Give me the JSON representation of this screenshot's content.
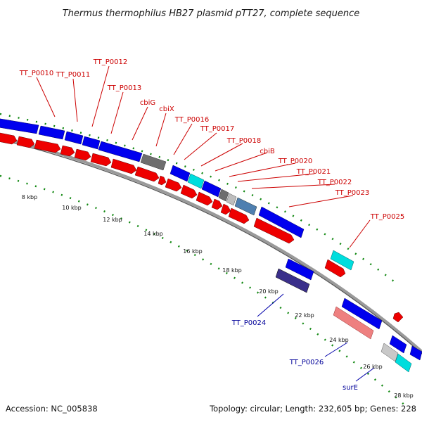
{
  "title": "Thermus thermophilus HB27 plasmid pTT27, complete sequence",
  "footer": {
    "accession": "Accession: NC_005838",
    "summary": "Topology: circular; Length: 232,605 bp; Genes: 228"
  },
  "colors": {
    "forward_cds": "#0000ee",
    "reverse_cds": "#ee0000",
    "other_feature": "#707070",
    "rna_gene": "#00c8c8",
    "pseudo_gene": "#3a2f8a",
    "misc_feature": "#ee8080",
    "outer_label": "#cc0000",
    "inner_label": "#000099",
    "tick": "#118811",
    "backbone": "#888888"
  },
  "scale_labels": [
    "8 kbp",
    "10 kbp",
    "12 kbp",
    "14 kbp",
    "16 kbp",
    "18 kbp",
    "20 kbp",
    "22 kbp",
    "24 kbp",
    "26 kbp",
    "28 kbp"
  ],
  "outer_labels": [
    "TT_P0010",
    "TT_P0011",
    "TT_P0012",
    "TT_P0013",
    "cbiG",
    "cbiX",
    "TT_P0016",
    "TT_P0017",
    "TT_P0018",
    "cbiB",
    "TT_P0020",
    "TT_P0021",
    "TT_P0022",
    "TT_P0023",
    "TT_P0025"
  ],
  "inner_labels": [
    "TT_P0024",
    "TT_P0026",
    "surE"
  ]
}
